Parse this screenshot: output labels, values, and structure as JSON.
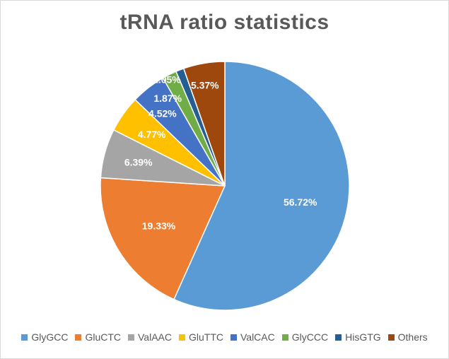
{
  "chart_data": {
    "type": "pie",
    "title": "tRNA ratio statistics",
    "categories": [
      "GlyGCC",
      "GluCTC",
      "ValAAC",
      "GluTTC",
      "ValCAC",
      "GlyCCC",
      "HisGTG",
      "Others"
    ],
    "values": [
      56.72,
      19.33,
      6.39,
      4.77,
      4.52,
      1.87,
      1.05,
      5.37
    ],
    "labels": [
      "56.72%",
      "19.33%",
      "6.39%",
      "4.77%",
      "4.52%",
      "1.87%",
      "1.05%",
      "5.37%"
    ],
    "colors": [
      "#5b9bd5",
      "#ed7d31",
      "#a5a5a5",
      "#ffc000",
      "#4472c4",
      "#70ad47",
      "#255e91",
      "#9e480e"
    ],
    "legend_position": "bottom",
    "start_angle_deg": 0,
    "direction": "clockwise"
  }
}
